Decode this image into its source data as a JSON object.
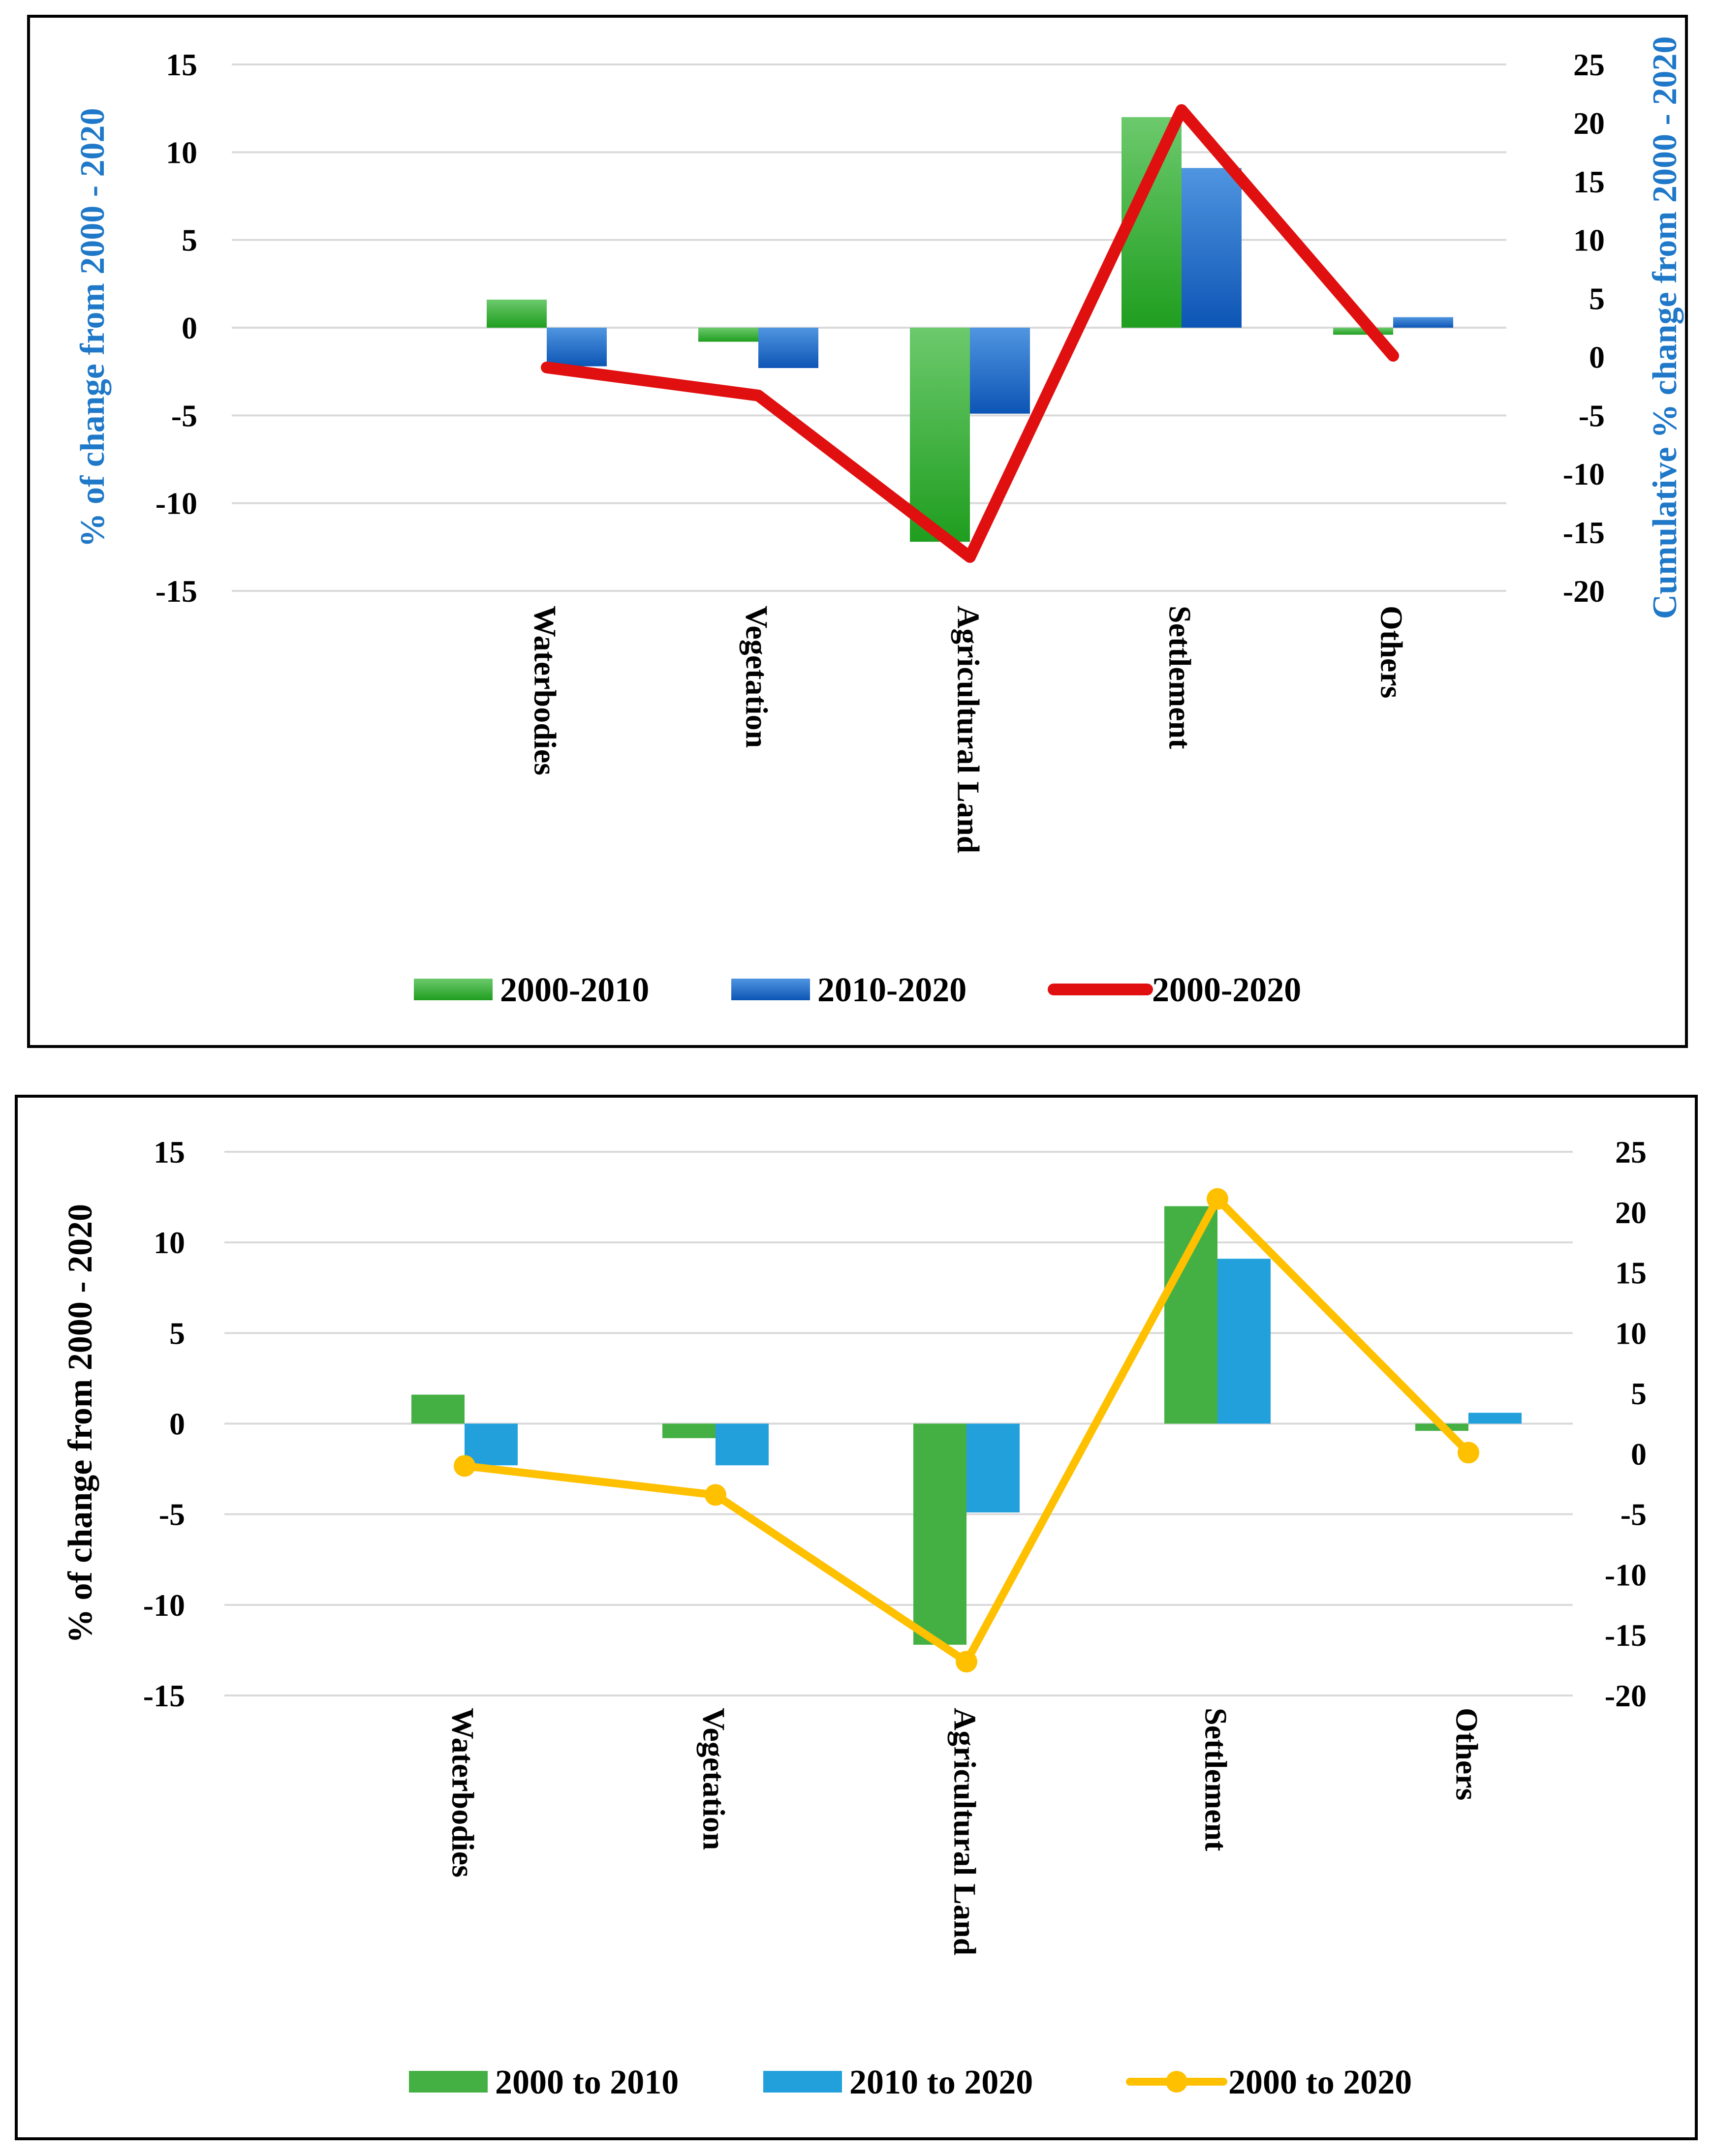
{
  "chart_data": [
    {
      "type": "bar+line",
      "categories": [
        "Waterbodies",
        "Vegetation",
        "Agricultural Land",
        "Settlement",
        "Others"
      ],
      "series": [
        {
          "name": "2000-2010",
          "kind": "bar",
          "axis": "left",
          "color": "#2eaa2e",
          "values": [
            1.6,
            -0.8,
            -12.2,
            12.0,
            -0.4
          ]
        },
        {
          "name": "2010-2020",
          "kind": "bar",
          "axis": "left",
          "color": "#1565c0",
          "values": [
            -2.2,
            -2.3,
            -4.9,
            9.1,
            0.6
          ]
        },
        {
          "name": "2000-2020",
          "kind": "line",
          "axis": "right",
          "color": "#e01010",
          "values": [
            -0.9,
            -3.3,
            -17.1,
            21.1,
            0.1
          ]
        }
      ],
      "ylabel": "% of change from 2000 - 2020",
      "y2label": "Cumulative % change from 2000 - 2020",
      "ylim": [
        -15,
        15
      ],
      "y2lim": [
        -20,
        25
      ],
      "yticks": [
        "15",
        "10",
        "5",
        "0",
        "-5",
        "-10",
        "-15"
      ],
      "y2ticks": [
        "25",
        "20",
        "15",
        "10",
        "5",
        "0",
        "-5",
        "-10",
        "-15",
        "-20"
      ],
      "legend_position": "bottom",
      "axis_title_color": "#1f78c8"
    },
    {
      "type": "bar+line",
      "categories": [
        "Waterbodies",
        "Vegetation",
        "Agricultural Land",
        "Settlement",
        "Others"
      ],
      "series": [
        {
          "name": "2000 to 2010",
          "kind": "bar",
          "axis": "left",
          "color": "#44b044",
          "values": [
            1.6,
            -0.8,
            -12.2,
            12.0,
            -0.4
          ]
        },
        {
          "name": "2010 to 2020",
          "kind": "bar",
          "axis": "left",
          "color": "#22a0dc",
          "values": [
            -2.3,
            -2.3,
            -4.9,
            9.1,
            0.6
          ]
        },
        {
          "name": "2000 to 2020",
          "kind": "line-markers",
          "axis": "right",
          "color": "#ffc000",
          "values": [
            -1.0,
            -3.4,
            -17.2,
            21.1,
            0.1
          ]
        }
      ],
      "ylabel": "% of change from 2000 - 2020",
      "ylim": [
        -15,
        15
      ],
      "y2lim": [
        -20,
        25
      ],
      "yticks": [
        "15",
        "10",
        "5",
        "0",
        "-5",
        "-10",
        "-15"
      ],
      "y2ticks": [
        "25",
        "20",
        "15",
        "10",
        "5",
        "0",
        "-5",
        "-10",
        "-15",
        "-20"
      ],
      "legend_position": "bottom",
      "axis_title_color": "#000000"
    }
  ]
}
